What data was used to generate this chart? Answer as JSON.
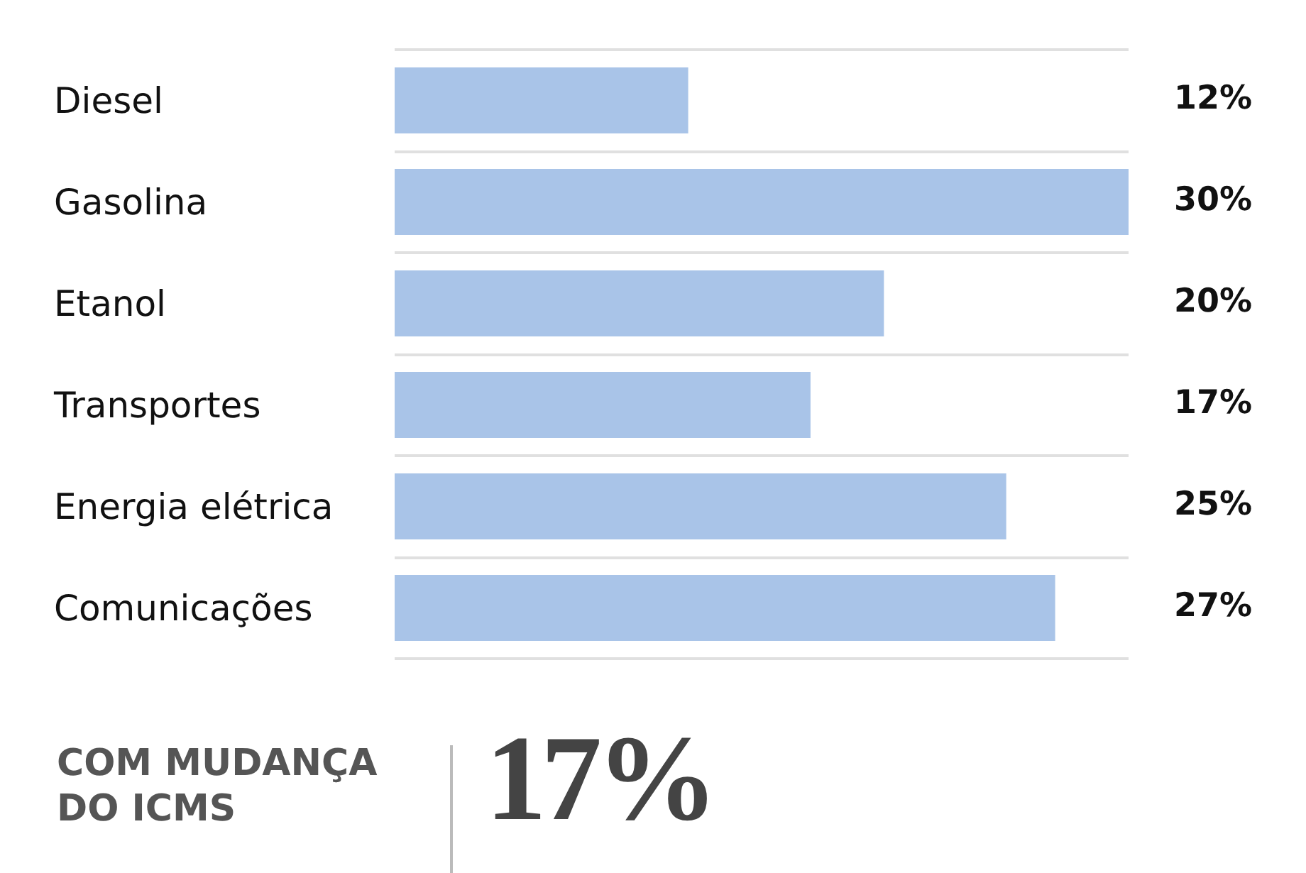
{
  "chart_data": {
    "type": "bar",
    "orientation": "horizontal",
    "categories": [
      "Diesel",
      "Gasolina",
      "Etanol",
      "Transportes",
      "Energia elétrica",
      "Comunicações"
    ],
    "values": [
      12,
      30,
      20,
      17,
      25,
      27
    ],
    "color": "#a9c4e8",
    "value_labels": [
      "12%",
      "30%",
      "20%",
      "17%",
      "25%",
      "27%"
    ],
    "grid": "y",
    "annotations": [
      "COM MUDANÇA\nDO ICMS",
      "17%"
    ]
  }
}
